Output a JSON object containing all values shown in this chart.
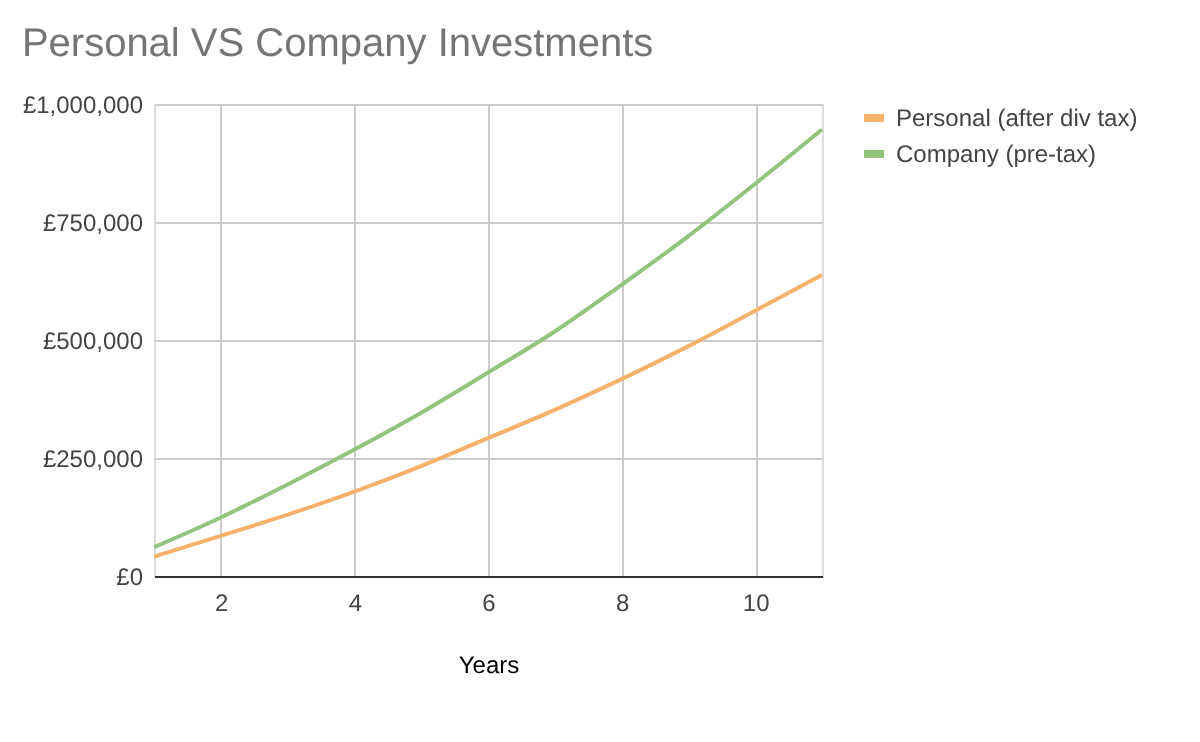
{
  "chart_data": {
    "type": "line",
    "title": "Personal VS Company Investments",
    "xlabel": "Years",
    "x": [
      1,
      2,
      3,
      4,
      5,
      6,
      7,
      8,
      9,
      10,
      11
    ],
    "series": [
      {
        "name": "Personal (after div tax)",
        "color": "#f6b26b",
        "values": [
          41000,
          85000,
          130000,
          179000,
          233000,
          292000,
          352000,
          417000,
          487000,
          562000,
          638000
        ]
      },
      {
        "name": "Company (pre-tax)",
        "color": "#93c47d",
        "values": [
          61000,
          124000,
          194000,
          268000,
          346000,
          431000,
          518000,
          617000,
          720000,
          831000,
          946000
        ]
      }
    ],
    "xlim": [
      1,
      11
    ],
    "xticks": [
      2,
      4,
      6,
      8,
      10
    ],
    "ylim": [
      0,
      1000000
    ],
    "yticks": [
      {
        "value": 0,
        "label": "£0"
      },
      {
        "value": 250000,
        "label": "£250,000"
      },
      {
        "value": 500000,
        "label": "£500,000"
      },
      {
        "value": 750000,
        "label": "£750,000"
      },
      {
        "value": 1000000,
        "label": "£1,000,000"
      }
    ],
    "grid": true,
    "legend": "top right",
    "marker": "none",
    "line_style": "solid"
  }
}
